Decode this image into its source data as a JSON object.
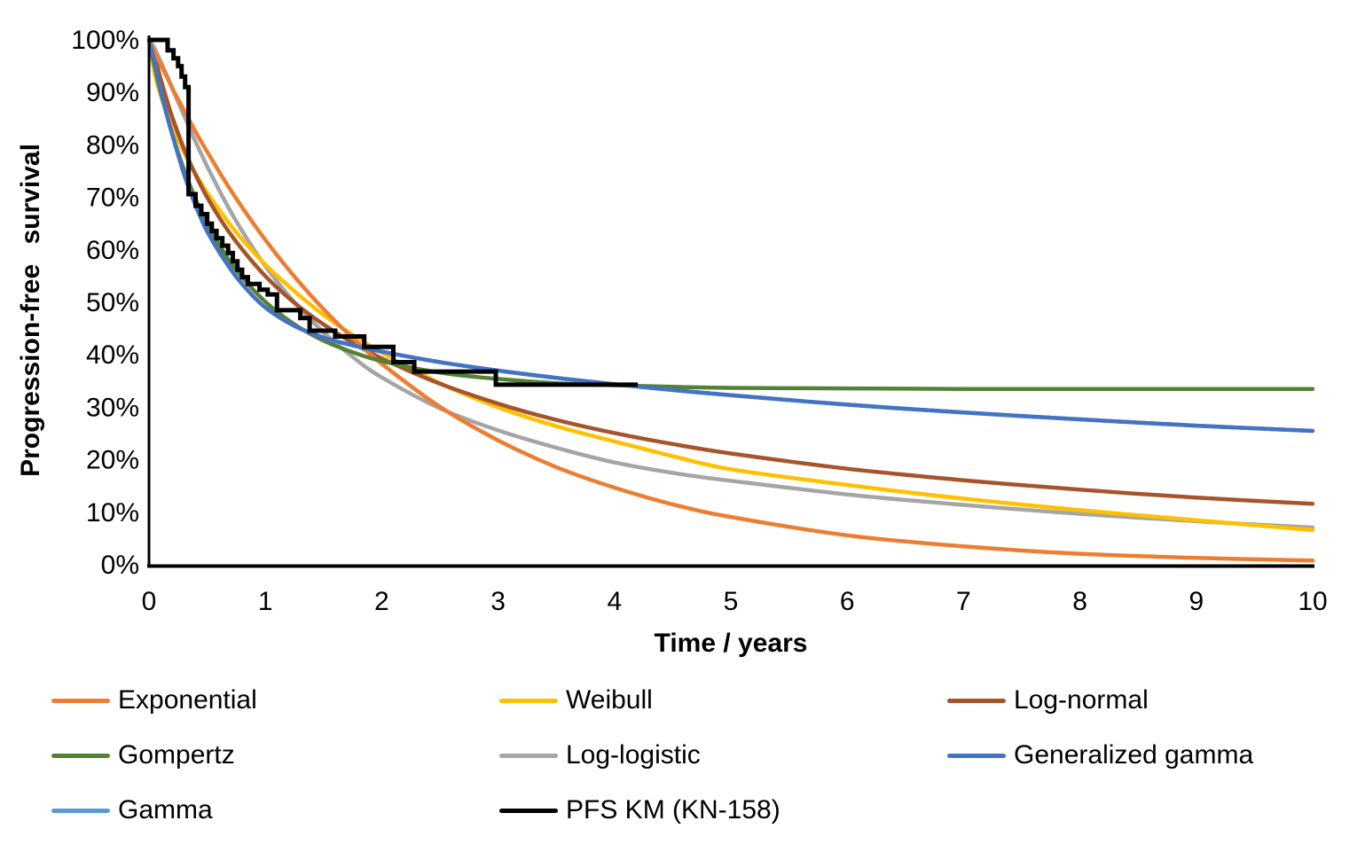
{
  "chart_data": {
    "type": "line",
    "title": "",
    "xlabel": "Time / years",
    "ylabel": "Progression-free survival",
    "xlim": [
      0,
      10
    ],
    "ylim": [
      0,
      100
    ],
    "grid": false,
    "legend_position": "bottom",
    "x_ticks": [
      0,
      1,
      2,
      3,
      4,
      5,
      6,
      7,
      8,
      9,
      10
    ],
    "y_ticks": [
      0,
      10,
      20,
      30,
      40,
      50,
      60,
      70,
      80,
      90,
      100
    ],
    "y_tick_labels": [
      "0%",
      "10%",
      "20%",
      "30%",
      "40%",
      "50%",
      "60%",
      "70%",
      "80%",
      "90%",
      "100%"
    ],
    "x": [
      0,
      0.05,
      0.1,
      0.15,
      0.2,
      0.3,
      0.4,
      0.5,
      0.65,
      0.8,
      1,
      1.25,
      1.5,
      1.75,
      2,
      2.5,
      3,
      3.5,
      4,
      4.5,
      5,
      6,
      7,
      8,
      9,
      10
    ],
    "series": [
      {
        "name": "Gamma",
        "color": "#5B9BD5",
        "note": "visually coincides with Generalized gamma curve",
        "y_pct": [
          100,
          95.5,
          90.5,
          86.0,
          82.0,
          74.5,
          68.5,
          63.5,
          58.0,
          53.5,
          49.0,
          45.5,
          43.3,
          41.8,
          40.6,
          38.6,
          37.0,
          35.6,
          34.4,
          33.3,
          32.3,
          30.5,
          29.0,
          27.7,
          26.5,
          25.5
        ]
      },
      {
        "name": "Log-logistic",
        "color": "#A5A5A5",
        "y_pct": [
          100,
          98.3,
          95.9,
          93.4,
          90.8,
          85.6,
          80.6,
          75.9,
          69.4,
          63.6,
          56.9,
          50.0,
          44.3,
          39.6,
          35.7,
          29.8,
          25.6,
          22.3,
          19.5,
          17.5,
          16.0,
          13.4,
          11.4,
          9.7,
          8.3,
          7.1
        ]
      },
      {
        "name": "Weibull",
        "color": "#FFC000",
        "y_pct": [
          100,
          93.4,
          89.5,
          86.3,
          83.5,
          78.6,
          74.5,
          70.9,
          66.2,
          62.0,
          57.2,
          52.1,
          47.6,
          43.8,
          40.4,
          34.6,
          30.0,
          26.4,
          23.5,
          20.7,
          18.2,
          15.2,
          12.6,
          10.4,
          8.5,
          6.6
        ]
      },
      {
        "name": "Log-normal",
        "color": "#A5542B",
        "y_pct": [
          100,
          96.8,
          92.6,
          88.8,
          85.3,
          79.3,
          74.3,
          70.0,
          64.6,
          60.1,
          55.0,
          49.9,
          45.8,
          42.3,
          39.3,
          34.5,
          30.7,
          27.6,
          25.1,
          23.0,
          21.2,
          18.3,
          16.1,
          14.3,
          12.8,
          11.6
        ]
      },
      {
        "name": "Exponential",
        "color": "#ED7D31",
        "y_pct": [
          100,
          97.6,
          95.3,
          93.1,
          90.8,
          86.6,
          82.5,
          78.7,
          73.2,
          68.1,
          61.9,
          54.9,
          48.7,
          43.2,
          38.3,
          30.1,
          23.7,
          18.6,
          14.7,
          11.5,
          9.1,
          5.6,
          3.5,
          2.1,
          1.3,
          0.8
        ]
      },
      {
        "name": "Gompertz",
        "color": "#548235",
        "y_pct": [
          100,
          94.8,
          90.1,
          85.9,
          82.0,
          75.3,
          69.7,
          65.0,
          59.3,
          54.8,
          50.1,
          45.8,
          42.7,
          40.5,
          38.8,
          36.6,
          35.4,
          34.6,
          34.2,
          33.9,
          33.7,
          33.6,
          33.5,
          33.5,
          33.5,
          33.5
        ]
      },
      {
        "name": "Generalized gamma",
        "color": "#4472C4",
        "y_pct": [
          100,
          95.5,
          90.5,
          86.0,
          82.0,
          74.5,
          68.5,
          63.5,
          58.0,
          53.5,
          49.0,
          45.5,
          43.3,
          41.8,
          40.6,
          38.6,
          37.0,
          35.6,
          34.4,
          33.3,
          32.3,
          30.5,
          29.0,
          27.7,
          26.5,
          25.5
        ]
      }
    ],
    "km_series": {
      "name": "PFS KM (KN-158)",
      "color": "#000000",
      "style": "step",
      "steps": [
        [
          0,
          100
        ],
        [
          0.16,
          98
        ],
        [
          0.21,
          96.5
        ],
        [
          0.25,
          95
        ],
        [
          0.28,
          93
        ],
        [
          0.31,
          91
        ],
        [
          0.34,
          70.6
        ],
        [
          0.4,
          68.4
        ],
        [
          0.45,
          66.8
        ],
        [
          0.5,
          65.0
        ],
        [
          0.54,
          63.6
        ],
        [
          0.58,
          62.2
        ],
        [
          0.63,
          60.8
        ],
        [
          0.68,
          59.4
        ],
        [
          0.72,
          57.8
        ],
        [
          0.76,
          56.2
        ],
        [
          0.8,
          54.8
        ],
        [
          0.85,
          53.5
        ],
        [
          0.95,
          52.4
        ],
        [
          1.02,
          51.5
        ],
        [
          1.1,
          48.5
        ],
        [
          1.3,
          47.0
        ],
        [
          1.38,
          44.6
        ],
        [
          1.6,
          43.5
        ],
        [
          1.85,
          41.5
        ],
        [
          2.1,
          38.6
        ],
        [
          2.28,
          36.8
        ],
        [
          2.98,
          34.3
        ],
        [
          4.2,
          34.3
        ]
      ]
    },
    "legend": {
      "items": [
        {
          "label": "Exponential",
          "color": "#ED7D31"
        },
        {
          "label": "Weibull",
          "color": "#FFC000"
        },
        {
          "label": "Log-normal",
          "color": "#A5542B"
        },
        {
          "label": "Gompertz",
          "color": "#548235"
        },
        {
          "label": "Log-logistic",
          "color": "#A5A5A5"
        },
        {
          "label": "Generalized gamma",
          "color": "#4472C4"
        },
        {
          "label": "Gamma",
          "color": "#5B9BD5"
        },
        {
          "label": "PFS KM (KN-158)",
          "color": "#000000"
        }
      ]
    }
  }
}
